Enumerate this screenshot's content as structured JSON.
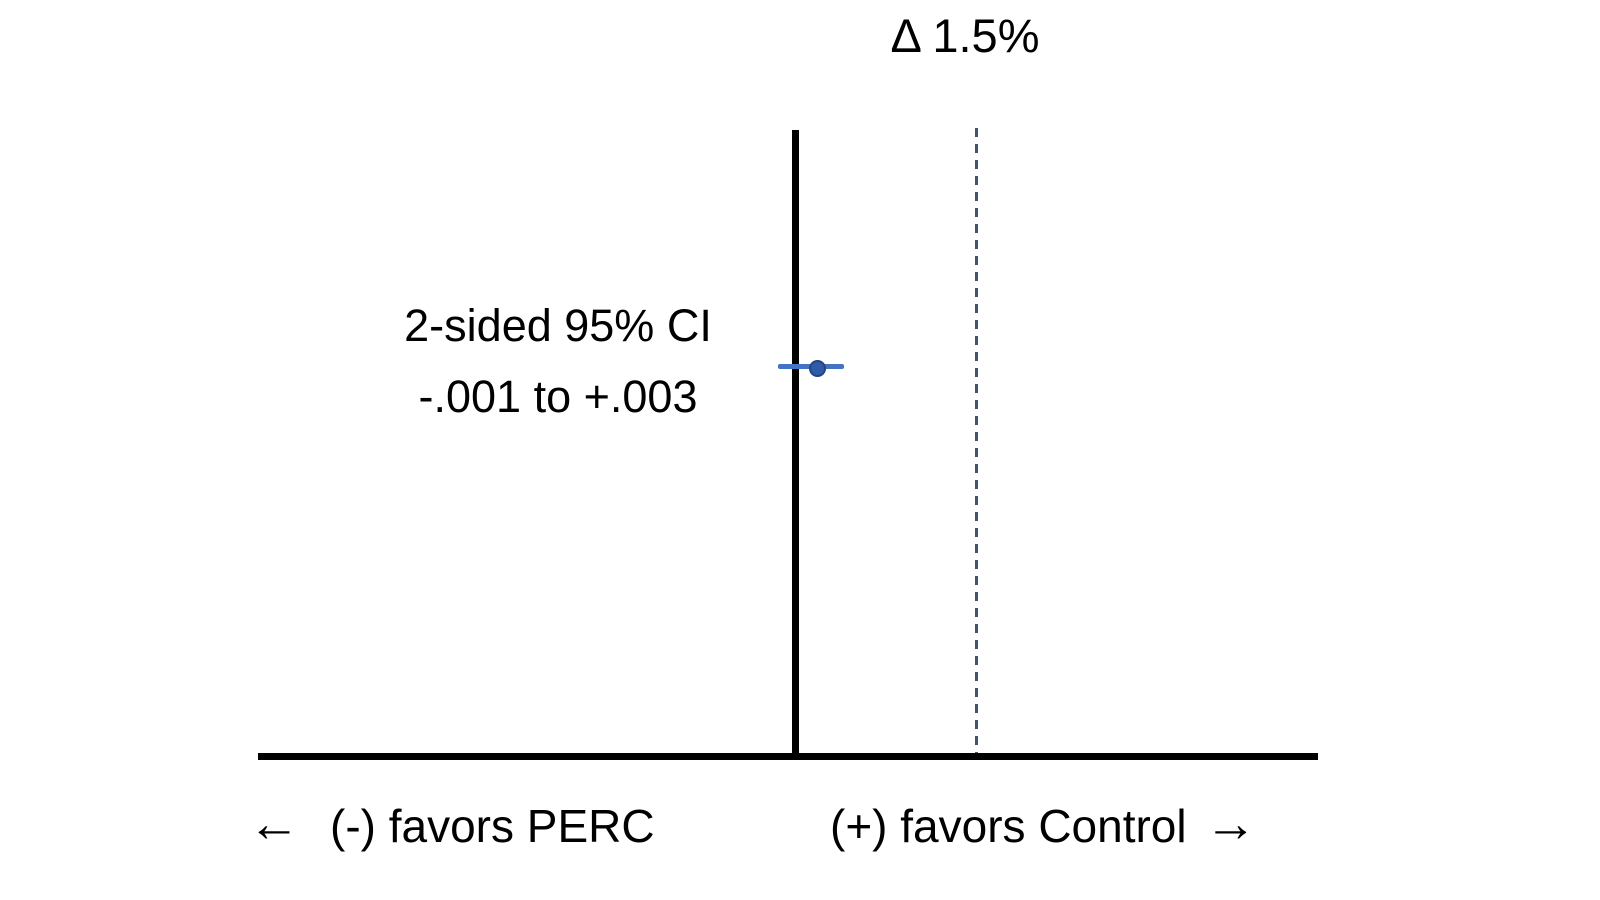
{
  "colors": {
    "axis_black": "#000000",
    "ci_line_blue": "#4472C4",
    "ci_dot_fill": "#2F5CA8",
    "ci_dot_border": "#25447F",
    "margin_dash_slate": "#44546A",
    "background": "#FFFFFF"
  },
  "chart_data": {
    "type": "scatter",
    "subtype": "noninferiority-confidence-interval-plot",
    "title": "Δ 1.5%",
    "noninferiority_margin": 0.015,
    "margin_label": "Δ 1.5%",
    "ci": {
      "label_line1": "2-sided 95% CI",
      "label_line2": "-.001 to +.003",
      "lower": -0.001,
      "upper": 0.003,
      "point_estimate": 0.001
    },
    "reference_lines": [
      {
        "name": "null-line",
        "x": 0,
        "style": "solid",
        "color": "#000000"
      },
      {
        "name": "margin-line",
        "x": 0.015,
        "style": "dashed",
        "color": "#44546A"
      }
    ],
    "x_axis": {
      "left_arrow": "←",
      "left_label": "(-) favors PERC",
      "right_label": "(+) favors Control",
      "right_arrow": "→"
    },
    "legend": "none",
    "grid": false
  }
}
